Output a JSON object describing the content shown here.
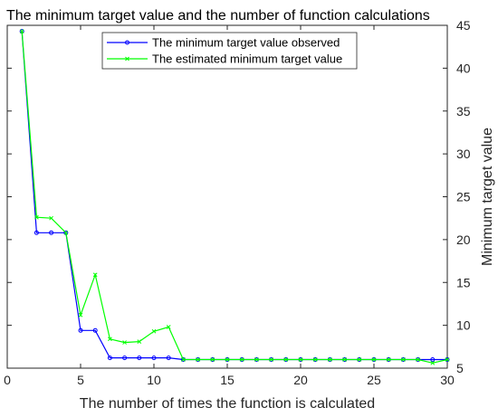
{
  "chart_data": {
    "type": "line",
    "title": "The minimum target value and the number of function calculations",
    "xlabel": "The number of times the function is calculated",
    "ylabel": "Minimum target value",
    "xlim": [
      0,
      30
    ],
    "ylim": [
      5,
      45
    ],
    "x_ticks": [
      "0",
      "5",
      "10",
      "15",
      "20",
      "25",
      "30"
    ],
    "y_ticks": [
      "5",
      "10",
      "15",
      "20",
      "25",
      "30",
      "35",
      "40",
      "45"
    ],
    "x_tick_values": [
      0,
      5,
      10,
      15,
      20,
      25,
      30
    ],
    "y_tick_values": [
      5,
      10,
      15,
      20,
      25,
      30,
      35,
      40,
      45
    ],
    "y_axis_side": "right",
    "grid": false,
    "legend_position": "top-center",
    "series": [
      {
        "name": "The minimum target value observed",
        "color": "#0000ff",
        "marker": "circle",
        "x": [
          1,
          2,
          3,
          4,
          5,
          6,
          7,
          8,
          9,
          10,
          11,
          12,
          13,
          14,
          15,
          16,
          17,
          18,
          19,
          20,
          21,
          22,
          23,
          24,
          25,
          26,
          27,
          28,
          29,
          30
        ],
        "values": [
          44.3,
          20.8,
          20.8,
          20.8,
          9.4,
          9.4,
          6.2,
          6.2,
          6.2,
          6.2,
          6.2,
          6.0,
          6.0,
          6.0,
          6.0,
          6.0,
          6.0,
          6.0,
          6.0,
          6.0,
          6.0,
          6.0,
          6.0,
          6.0,
          6.0,
          6.0,
          6.0,
          6.0,
          6.0,
          6.0
        ]
      },
      {
        "name": "The estimated minimum target value",
        "color": "#00ff00",
        "marker": "x",
        "x": [
          1,
          2,
          3,
          4,
          5,
          6,
          7,
          8,
          9,
          10,
          11,
          12,
          13,
          14,
          15,
          16,
          17,
          18,
          19,
          20,
          21,
          22,
          23,
          24,
          25,
          26,
          27,
          28,
          29,
          30
        ],
        "values": [
          44.3,
          22.6,
          22.5,
          20.8,
          11.2,
          15.9,
          8.4,
          8.0,
          8.1,
          9.3,
          9.8,
          6.0,
          6.0,
          6.0,
          6.0,
          6.0,
          6.0,
          6.0,
          6.0,
          6.0,
          6.0,
          6.0,
          6.0,
          6.0,
          6.0,
          6.0,
          6.0,
          6.0,
          5.6,
          6.0
        ]
      }
    ]
  }
}
